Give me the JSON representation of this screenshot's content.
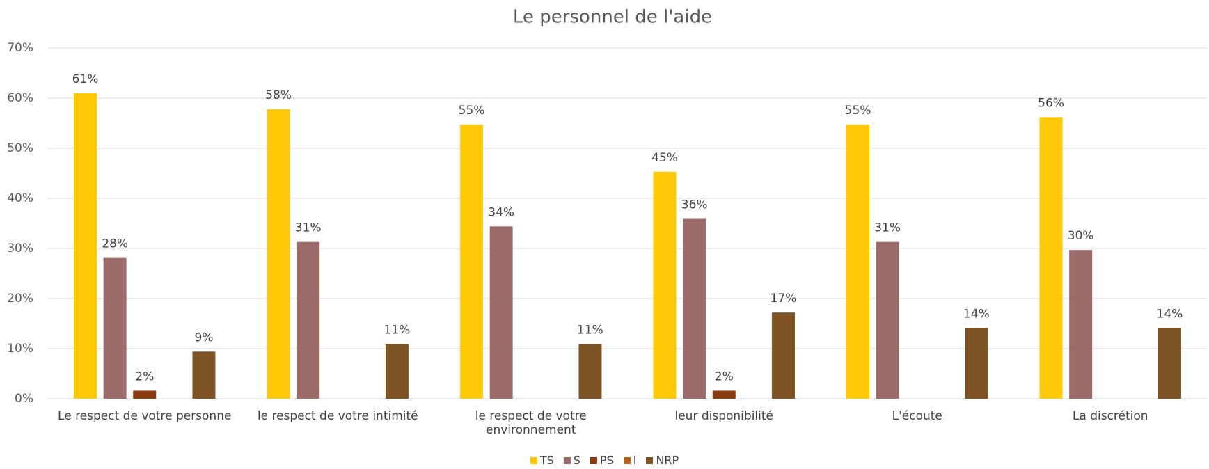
{
  "chart_data": {
    "type": "bar",
    "title": "Le personnel de l'aide",
    "categories": [
      "Le respect de votre personne",
      "le respect de votre intimité",
      "le respect de votre environnement",
      "leur disponibilité",
      "L'écoute",
      "La discrétion"
    ],
    "series": [
      {
        "name": "TS",
        "color": "#ffc907",
        "values": [
          61,
          57.8,
          54.7,
          45.3,
          54.7,
          56.2
        ],
        "value_labels": [
          "61%",
          "58%",
          "55%",
          "45%",
          "55%",
          "56%"
        ]
      },
      {
        "name": "S",
        "color": "#9e6b6b",
        "values": [
          28.1,
          31.3,
          34.4,
          35.9,
          31.3,
          29.7
        ],
        "value_labels": [
          "28%",
          "31%",
          "34%",
          "36%",
          "31%",
          "30%"
        ]
      },
      {
        "name": "PS",
        "color": "#8b3a0e",
        "values": [
          1.6,
          null,
          null,
          1.6,
          null,
          null
        ],
        "value_labels": [
          "2%",
          null,
          null,
          "2%",
          null,
          null
        ]
      },
      {
        "name": "I",
        "color": "#b5651d",
        "values": [
          null,
          null,
          null,
          null,
          null,
          null
        ],
        "value_labels": [
          null,
          null,
          null,
          null,
          null,
          null
        ]
      },
      {
        "name": "NRP",
        "color": "#7f5323",
        "values": [
          9.4,
          10.9,
          10.9,
          17.2,
          14.1,
          14.1
        ],
        "value_labels": [
          "9%",
          "11%",
          "11%",
          "17%",
          "14%",
          "14%"
        ]
      }
    ],
    "ylim": [
      0,
      70
    ],
    "yticks": [
      {
        "value": 0,
        "label": "0%"
      },
      {
        "value": 10,
        "label": "10%"
      },
      {
        "value": 20,
        "label": "20%"
      },
      {
        "value": 30,
        "label": "30%"
      },
      {
        "value": 40,
        "label": "40%"
      },
      {
        "value": 50,
        "label": "50%"
      },
      {
        "value": 60,
        "label": "60%"
      },
      {
        "value": 70,
        "label": "70%"
      }
    ],
    "grid": true,
    "legend": "bottom"
  }
}
